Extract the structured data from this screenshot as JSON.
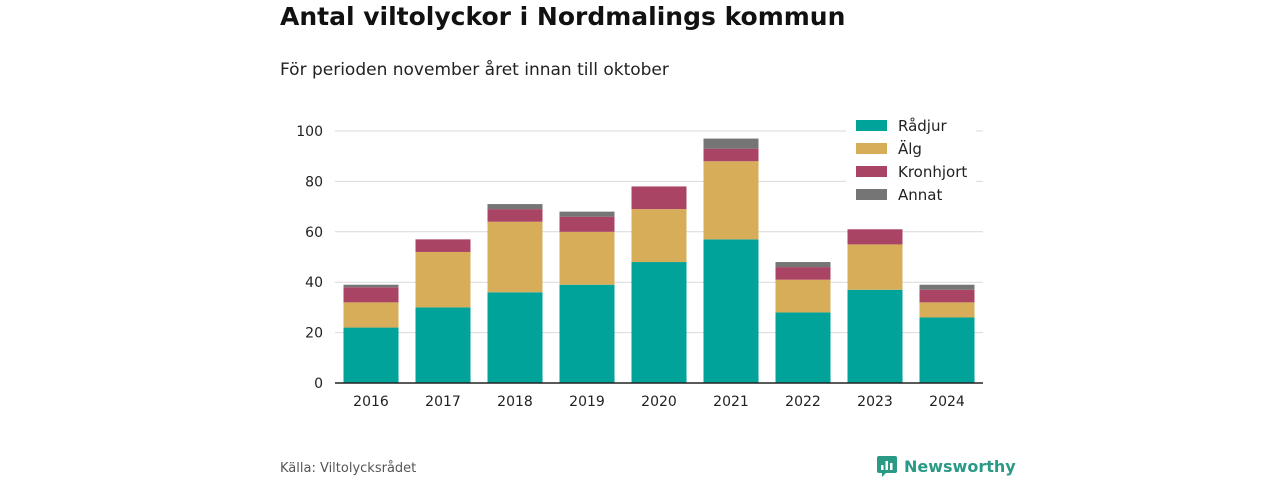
{
  "header": {
    "title": "Antal viltolyckor i Nordmalings kommun",
    "subtitle": "För perioden november året innan till oktober"
  },
  "footer": {
    "source": "Källa: Viltolycksrådet",
    "brand": "Newsworthy"
  },
  "icons": {
    "logo": "newsworthy-logo-icon"
  },
  "chart_data": {
    "type": "bar",
    "stacked": true,
    "title": "Antal viltolyckor i Nordmalings kommun",
    "subtitle": "För perioden november året innan till oktober",
    "categories": [
      "2016",
      "2017",
      "2018",
      "2019",
      "2020",
      "2021",
      "2022",
      "2023",
      "2024"
    ],
    "series": [
      {
        "name": "Rådjur",
        "color": "#00a39a",
        "values": [
          22,
          30,
          36,
          39,
          48,
          57,
          28,
          37,
          26
        ]
      },
      {
        "name": "Älg",
        "color": "#d8ad59",
        "values": [
          10,
          22,
          28,
          21,
          21,
          31,
          13,
          18,
          6
        ]
      },
      {
        "name": "Kronhjort",
        "color": "#a94465",
        "values": [
          6,
          5,
          5,
          6,
          9,
          5,
          5,
          6,
          5
        ]
      },
      {
        "name": "Annat",
        "color": "#757575",
        "values": [
          1,
          0,
          2,
          2,
          0,
          4,
          2,
          0,
          2
        ]
      }
    ],
    "ylim": [
      0,
      100
    ],
    "yticks": [
      0,
      20,
      40,
      60,
      80,
      100
    ],
    "grid": true,
    "legend": "top-right",
    "xlabel": "",
    "ylabel": ""
  }
}
